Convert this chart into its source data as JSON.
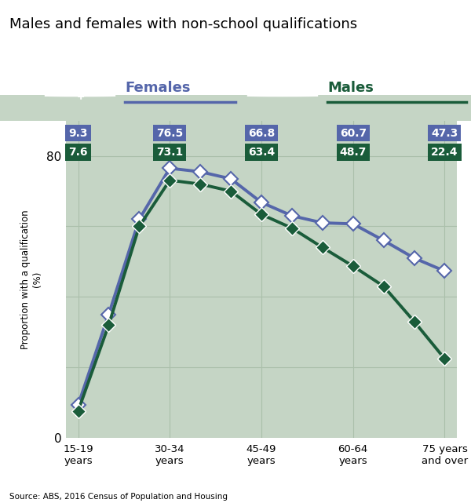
{
  "title": "Males and females with non-school qualifications",
  "bg_color": "#c5d5c5",
  "white_bg": "#ffffff",
  "female_color": "#5566aa",
  "male_color": "#1a5c3a",
  "female_label": "Females",
  "male_label": "Males",
  "ylabel": "Proportion with a qualification\n(%)",
  "source": "Source: ABS, 2016 Census of Population and Housing",
  "x_tick_labels": [
    "15-19\nyears",
    "30-34\nyears",
    "45-49\nyears",
    "60-64\nyears",
    "75 years\nand over"
  ],
  "x_tick_positions": [
    0,
    3,
    6,
    9,
    12
  ],
  "females_data": [
    9.3,
    35.0,
    62.0,
    76.5,
    75.5,
    73.5,
    66.8,
    63.0,
    61.0,
    60.7,
    56.0,
    51.0,
    47.3
  ],
  "males_data": [
    7.6,
    32.0,
    60.0,
    73.1,
    72.0,
    70.0,
    63.4,
    59.5,
    54.0,
    48.7,
    43.0,
    33.0,
    22.4
  ],
  "annotation_x_pos": [
    0,
    3,
    6,
    9,
    12
  ],
  "females_annotations": [
    "9.3",
    "76.5",
    "66.8",
    "60.7",
    "47.3"
  ],
  "males_annotations": [
    "7.6",
    "73.1",
    "63.4",
    "48.7",
    "22.4"
  ],
  "ylim": [
    0,
    90
  ],
  "grid_color": "#aabfaa",
  "marker_female_face": "white",
  "marker_male_face": "#1a5c3a"
}
